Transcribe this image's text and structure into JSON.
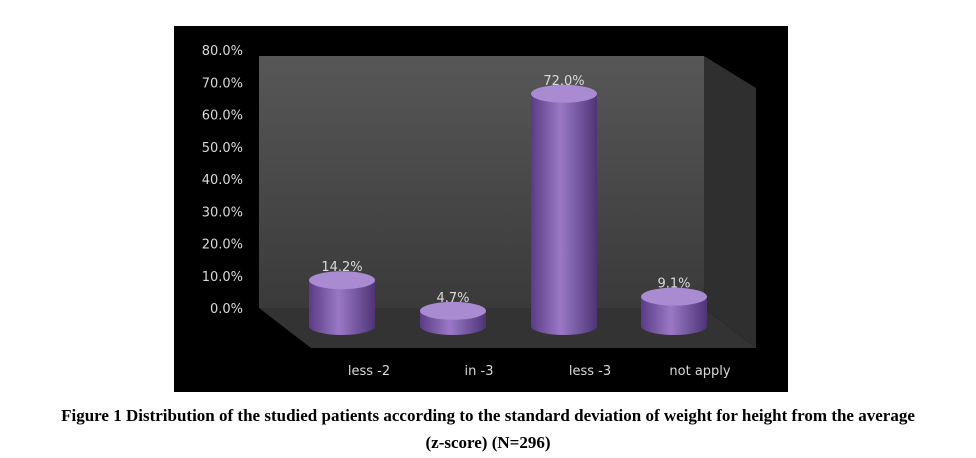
{
  "chart_data": {
    "type": "bar",
    "categories": [
      "less -2",
      "in -3",
      "less -3",
      "not apply"
    ],
    "values": [
      14.2,
      4.7,
      72.0,
      9.1
    ],
    "data_labels": [
      "14.2%",
      "4.7%",
      "72.0%",
      "9.1%"
    ],
    "y_ticks": [
      "0.0%",
      "10.0%",
      "20.0%",
      "30.0%",
      "40.0%",
      "50.0%",
      "60.0%",
      "70.0%",
      "80.0%"
    ],
    "ylim": [
      0,
      80
    ],
    "style": "3d-cylinder",
    "grid": false,
    "colors": {
      "bar": "#7b57a8",
      "background": "#000000",
      "wall": "#4a4a4a",
      "floor": "#2e2e2e",
      "text": "#d9d9d9"
    }
  },
  "caption": {
    "line1": "Figure 1 Distribution of the studied patients according to the standard deviation of weight for height from the average",
    "line2": "(z-score) (N=296)"
  }
}
